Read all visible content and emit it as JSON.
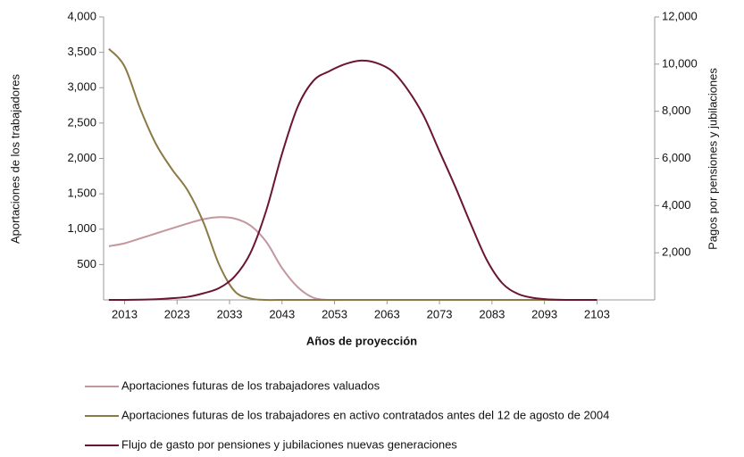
{
  "chart_data": {
    "type": "line",
    "xlabel": "Años de proyección",
    "ylabel": "Aportaciones de los trabajadores",
    "y2label": "Pagos por pensiones y jubilaciones",
    "x": [
      2010,
      2013,
      2016,
      2019,
      2022,
      2025,
      2028,
      2031,
      2034,
      2037,
      2040,
      2043,
      2046,
      2049,
      2052,
      2055,
      2058,
      2061,
      2064,
      2067,
      2070,
      2073,
      2076,
      2079,
      2082,
      2085,
      2088,
      2091,
      2094,
      2097,
      2100,
      2103
    ],
    "xlim": [
      2009,
      2114
    ],
    "xticks": [
      2013,
      2023,
      2033,
      2043,
      2053,
      2063,
      2073,
      2083,
      2093,
      2103
    ],
    "ylim": [
      0,
      4000
    ],
    "yticks": [
      {
        "value": 500,
        "label": "500"
      },
      {
        "value": 1000,
        "label": "1,000"
      },
      {
        "value": 1500,
        "label": "1,500"
      },
      {
        "value": 2000,
        "label": "2,000"
      },
      {
        "value": 2500,
        "label": "2,500"
      },
      {
        "value": 3000,
        "label": "3,000"
      },
      {
        "value": 3500,
        "label": "3,500"
      },
      {
        "value": 4000,
        "label": "4,000"
      }
    ],
    "y2lim": [
      0,
      12000
    ],
    "y2ticks": [
      {
        "value": 2000,
        "label": "2,000"
      },
      {
        "value": 4000,
        "label": "4,000"
      },
      {
        "value": 6000,
        "label": "6,000"
      },
      {
        "value": 8000,
        "label": "8,000"
      },
      {
        "value": 10000,
        "label": "10,000"
      },
      {
        "value": 12000,
        "label": "12,000"
      }
    ],
    "series": [
      {
        "name": "Aportaciones futuras de los trabajadores valuados",
        "color": "#c4979f",
        "values": [
          760,
          800,
          870,
          940,
          1010,
          1080,
          1140,
          1170,
          1150,
          1050,
          820,
          450,
          180,
          30,
          0,
          0,
          0,
          0,
          0,
          0,
          0,
          0,
          0,
          0,
          0,
          0,
          0,
          0,
          0,
          0,
          0,
          0
        ]
      },
      {
        "name": "Aportaciones futuras de los trabajadores en activo contratados antes del 12 de agosto de 2004",
        "color": "#8b7a45",
        "values": [
          3550,
          3300,
          2700,
          2200,
          1850,
          1550,
          1100,
          500,
          120,
          20,
          0,
          0,
          0,
          0,
          0,
          0,
          0,
          0,
          0,
          0,
          0,
          0,
          0,
          0,
          0,
          0,
          0,
          0,
          0,
          0,
          0,
          0
        ]
      },
      {
        "name": "Flujo de gasto por pensiones y jubilaciones nuevas generaciones",
        "color": "#6b1535",
        "axis": "y2",
        "values": [
          0,
          0,
          10,
          30,
          70,
          130,
          280,
          500,
          1000,
          2000,
          3800,
          6200,
          8200,
          9300,
          9700,
          10000,
          10150,
          10050,
          9700,
          8900,
          7800,
          6300,
          4800,
          3200,
          1700,
          700,
          250,
          80,
          20,
          0,
          0,
          0
        ]
      }
    ]
  }
}
